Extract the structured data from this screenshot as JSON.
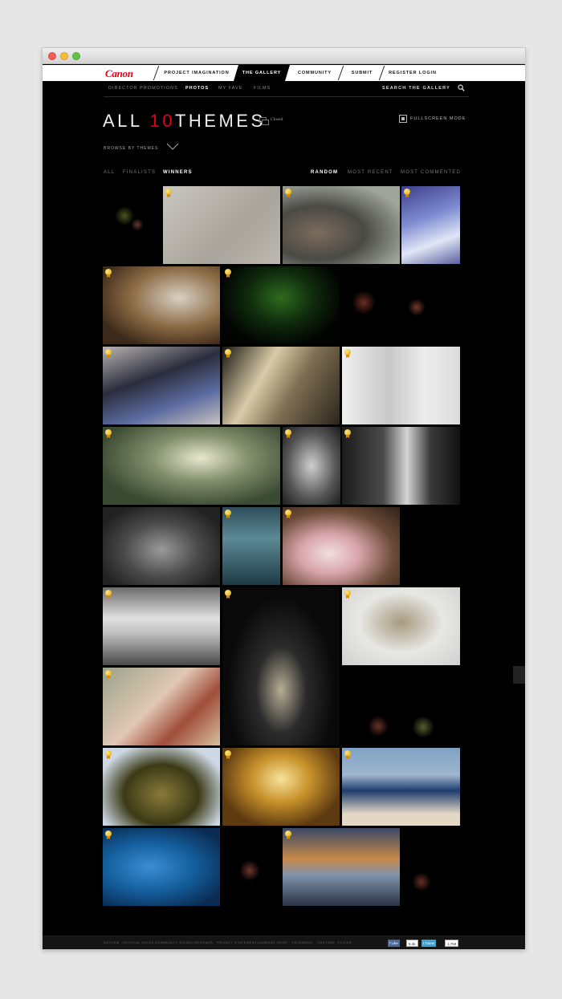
{
  "brand": {
    "logo": "Canon",
    "accent": "#e50012"
  },
  "nav": {
    "items": [
      {
        "label": "PROJECT IMAGINATION",
        "active": false
      },
      {
        "label": "THE GALLERY",
        "active": true
      },
      {
        "label": "COMMUNITY",
        "active": false
      },
      {
        "label": "SUBMIT",
        "active": false
      },
      {
        "label": "REGISTER LOGIN",
        "active": false
      }
    ]
  },
  "subnav": {
    "items": [
      {
        "label": "DIRECTOR PROMOTIONS",
        "active": false
      },
      {
        "label": "PHOTOS",
        "active": true
      },
      {
        "label": "MY FAVE",
        "active": false
      },
      {
        "label": "FILMS",
        "active": false
      }
    ],
    "search_label": "SEARCH THE GALLERY"
  },
  "page": {
    "title_prefix": "ALL",
    "title_number": "10",
    "title_suffix": "THEMES",
    "status": "Closed",
    "fullscreen": "FULLSCREEN MODE",
    "browse": "BROWSE BY THEMES"
  },
  "filters": {
    "left": [
      {
        "label": "ALL",
        "active": false
      },
      {
        "label": "FINALISTS",
        "active": false
      },
      {
        "label": "WINNERS",
        "active": true
      }
    ],
    "right": [
      {
        "label": "RANDOM",
        "active": true
      },
      {
        "label": "MOST RECENT",
        "active": false
      },
      {
        "label": "MOST COMMENTED",
        "active": false
      }
    ]
  },
  "footer": {
    "links": [
      "ANTHEM",
      "OFFICIAL RULES",
      "COMMUNITY GUIDELINES",
      "FAQS",
      "PRIVACY STATEMENT",
      "CAMERAS",
      "SHOP",
      "FACEBOOK",
      "YOUTUBE",
      "FLICKR"
    ],
    "like_label": "Like",
    "like_count": "5.4k",
    "tweet_label": "Tweet",
    "tweet_count": "1,758"
  }
}
